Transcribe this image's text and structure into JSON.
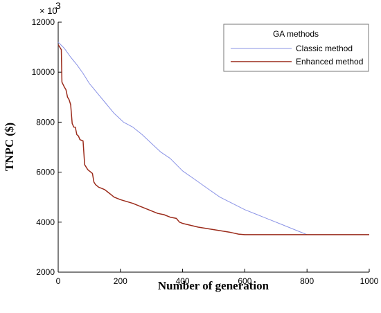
{
  "chart_data": {
    "type": "line",
    "xlabel": "Number of generation",
    "ylabel": "TNPC ($)",
    "y_multiplier_base": "× 10",
    "y_multiplier_exp": "3",
    "xlim": [
      0,
      1000
    ],
    "ylim": [
      2000,
      12000
    ],
    "x_ticks": [
      0,
      200,
      400,
      600,
      800,
      1000
    ],
    "y_ticks": [
      2000,
      4000,
      6000,
      8000,
      10000,
      12000
    ],
    "x_tick_labels": [
      "0",
      "200",
      "400",
      "600",
      "800",
      "1000"
    ],
    "y_tick_labels": [
      "2000",
      "4000",
      "6000",
      "8000",
      "10000",
      "12000"
    ],
    "grid": false,
    "legend": {
      "title": "GA methods",
      "placement": "top-right"
    },
    "series": [
      {
        "name": "Classic method",
        "color": "#8a93e6",
        "x": [
          0,
          20,
          40,
          60,
          80,
          100,
          120,
          150,
          180,
          210,
          240,
          270,
          300,
          330,
          360,
          400,
          440,
          480,
          520,
          560,
          600,
          640,
          680,
          720,
          760,
          800,
          850,
          900,
          950,
          1000
        ],
        "y": [
          11200,
          10950,
          10600,
          10300,
          9950,
          9550,
          9250,
          8800,
          8350,
          8000,
          7800,
          7500,
          7150,
          6800,
          6550,
          6050,
          5700,
          5350,
          5000,
          4750,
          4500,
          4300,
          4100,
          3900,
          3700,
          3500,
          3500,
          3500,
          3500,
          3500
        ]
      },
      {
        "name": "Enhanced method",
        "color": "#9b2b1b",
        "x": [
          0,
          10,
          12,
          20,
          25,
          30,
          35,
          40,
          45,
          50,
          55,
          60,
          65,
          70,
          80,
          85,
          90,
          95,
          100,
          110,
          115,
          120,
          130,
          140,
          150,
          160,
          170,
          180,
          200,
          240,
          260,
          280,
          300,
          320,
          340,
          360,
          380,
          390,
          400,
          450,
          500,
          550,
          580,
          600,
          650,
          800,
          1000
        ],
        "y": [
          11100,
          10900,
          9600,
          9400,
          9300,
          9000,
          8900,
          8700,
          7950,
          7800,
          7800,
          7500,
          7450,
          7300,
          7250,
          6300,
          6200,
          6100,
          6050,
          5950,
          5600,
          5500,
          5400,
          5350,
          5300,
          5200,
          5100,
          5000,
          4900,
          4750,
          4650,
          4550,
          4450,
          4350,
          4300,
          4200,
          4150,
          4000,
          3950,
          3800,
          3700,
          3600,
          3520,
          3500,
          3500,
          3500,
          3500
        ]
      }
    ]
  }
}
